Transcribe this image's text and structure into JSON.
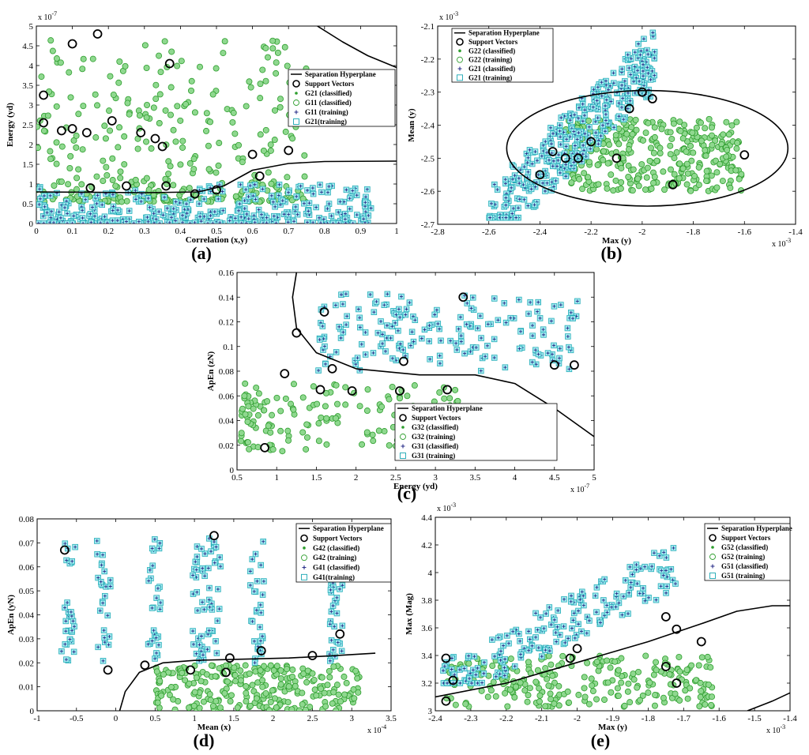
{
  "colors": {
    "classA_fill": "#8fd88f",
    "classA_edge": "#2e9e2e",
    "classB_fill": "#9fe9ef",
    "classB_edge": "#1aa7b3",
    "star": "#2a2f8a",
    "hyperplane": "#000000"
  },
  "legend_common": {
    "hyperplane": "Separation Hyperplane",
    "support": "Support Vectors"
  },
  "chart_data": [
    {
      "id": "a",
      "panel_label": "(a)",
      "type": "scatter",
      "xlabel": "Correlation (x,y)",
      "ylabel": "Energy (yd)",
      "xlim": [
        0,
        1
      ],
      "ylim": [
        0,
        5
      ],
      "xticks": [
        "0",
        "0.1",
        "0.2",
        "0.3",
        "0.4",
        "0.5",
        "0.6",
        "0.7",
        "0.8",
        "0.9",
        "1"
      ],
      "yticks": [
        "0",
        "0.5",
        "1",
        "1.5",
        "2",
        "2.5",
        "3",
        "3.5",
        "4",
        "4.5",
        "5"
      ],
      "x_exponent": "",
      "y_exponent": "x 10",
      "y_exponent_power": "-7",
      "legend": [
        "G21 (classified)",
        "G11 (classified)",
        "G11 (training)",
        "G21(training)"
      ],
      "hyperplane": [
        [
          [
            0.78,
            5.0
          ],
          [
            0.85,
            4.6
          ],
          [
            0.92,
            4.25
          ],
          [
            1.0,
            3.95
          ]
        ],
        [
          [
            0.0,
            0.8
          ],
          [
            0.3,
            0.78
          ],
          [
            0.45,
            0.8
          ],
          [
            0.52,
            0.95
          ],
          [
            0.6,
            1.35
          ],
          [
            0.7,
            1.52
          ],
          [
            0.8,
            1.57
          ],
          [
            1.0,
            1.58
          ]
        ]
      ],
      "series": [
        {
          "name": "G21 (training)",
          "class": "A",
          "n": 330,
          "x": [
            0.0,
            0.75
          ],
          "y": [
            0.55,
            4.7
          ],
          "skew": "lowdense"
        },
        {
          "name": "G11 (training)",
          "class": "B",
          "n": 340,
          "x": [
            0.0,
            0.93
          ],
          "y": [
            0.0,
            1.0
          ],
          "skew": "lowdense"
        }
      ],
      "support_vectors": [
        [
          0.02,
          3.25
        ],
        [
          0.1,
          4.55
        ],
        [
          0.17,
          4.8
        ],
        [
          0.37,
          4.05
        ],
        [
          0.02,
          2.55
        ],
        [
          0.07,
          2.35
        ],
        [
          0.1,
          2.4
        ],
        [
          0.14,
          2.3
        ],
        [
          0.21,
          2.6
        ],
        [
          0.29,
          2.3
        ],
        [
          0.33,
          2.15
        ],
        [
          0.35,
          1.95
        ],
        [
          0.6,
          1.75
        ],
        [
          0.7,
          1.85
        ],
        [
          0.36,
          0.95
        ],
        [
          0.44,
          0.75
        ],
        [
          0.5,
          0.85
        ],
        [
          0.62,
          1.2
        ],
        [
          0.25,
          0.95
        ],
        [
          0.15,
          0.9
        ]
      ]
    },
    {
      "id": "b",
      "panel_label": "(b)",
      "type": "scatter",
      "xlabel": "Max (y)",
      "ylabel": "Mean (y)",
      "xlim": [
        -2.8,
        -1.4
      ],
      "ylim": [
        -2.7,
        -2.1
      ],
      "xticks": [
        "-2.8",
        "-2.6",
        "-2.4",
        "-2.2",
        "-2",
        "-1.8",
        "-1.6",
        "-1.4"
      ],
      "yticks": [
        "-2.7",
        "-2.6",
        "-2.5",
        "-2.4",
        "-2.3",
        "-2.2",
        "-2.1"
      ],
      "x_exponent": "x 10",
      "x_exponent_power": "-3",
      "y_exponent": "x 10",
      "y_exponent_power": "-3",
      "legend": [
        "G22 (classified)",
        "G22 (training)",
        "G21 (classified)",
        "G21 (training)"
      ],
      "ellipse": {
        "cx": -1.98,
        "cy": -2.47,
        "rx": 0.55,
        "ry": 0.175
      },
      "series": [
        {
          "name": "G22 (training)",
          "class": "A",
          "n": 330,
          "x": [
            -2.3,
            -1.6
          ],
          "y": [
            -2.6,
            -2.38
          ],
          "skew": "none"
        },
        {
          "name": "G21 (training)",
          "class": "B",
          "n": 340,
          "x": [
            -2.6,
            -1.95
          ],
          "y": [
            -2.68,
            -2.12
          ],
          "skew": "diag"
        }
      ],
      "support_vectors": [
        [
          -2.0,
          -2.3
        ],
        [
          -1.96,
          -2.32
        ],
        [
          -2.05,
          -2.35
        ],
        [
          -2.2,
          -2.45
        ],
        [
          -2.3,
          -2.5
        ],
        [
          -2.4,
          -2.55
        ],
        [
          -2.1,
          -2.5
        ],
        [
          -1.6,
          -2.49
        ],
        [
          -1.88,
          -2.58
        ],
        [
          -2.25,
          -2.5
        ],
        [
          -2.35,
          -2.48
        ]
      ]
    },
    {
      "id": "c",
      "panel_label": "(c)",
      "type": "scatter",
      "xlabel": "Energy (yd)",
      "ylabel": "ApEn (zN)",
      "xlim": [
        0.5,
        5
      ],
      "ylim": [
        0,
        0.16
      ],
      "xticks": [
        "0.5",
        "1",
        "1.5",
        "2",
        "2.5",
        "3",
        "3.5",
        "4",
        "4.5",
        "5"
      ],
      "yticks": [
        "0",
        "0.02",
        "0.04",
        "0.06",
        "0.08",
        "0.1",
        "0.12",
        "0.14",
        "0.16"
      ],
      "x_exponent": "x 10",
      "x_exponent_power": "-7",
      "y_exponent": "",
      "legend": [
        "G32 (classified)",
        "G32 (training)",
        "G31 (classified)",
        "G31 (training)"
      ],
      "hyperplane": [
        [
          [
            1.25,
            0.16
          ],
          [
            1.2,
            0.14
          ],
          [
            1.25,
            0.115
          ],
          [
            1.5,
            0.095
          ],
          [
            2.0,
            0.082
          ],
          [
            2.8,
            0.077
          ],
          [
            3.5,
            0.077
          ],
          [
            4.0,
            0.07
          ],
          [
            4.5,
            0.05
          ],
          [
            5.0,
            0.027
          ]
        ]
      ],
      "series": [
        {
          "name": "G32 (training)",
          "class": "A",
          "n": 150,
          "x": [
            0.55,
            3.3
          ],
          "y": [
            0.015,
            0.07
          ],
          "skew": "leftdense"
        },
        {
          "name": "G31 (training)",
          "class": "B",
          "n": 170,
          "x": [
            1.5,
            4.8
          ],
          "y": [
            0.08,
            0.143
          ],
          "skew": "none"
        }
      ],
      "support_vectors": [
        [
          1.25,
          0.111
        ],
        [
          1.6,
          0.128
        ],
        [
          3.35,
          0.14
        ],
        [
          1.7,
          0.082
        ],
        [
          2.6,
          0.088
        ],
        [
          4.5,
          0.085
        ],
        [
          4.75,
          0.085
        ],
        [
          0.85,
          0.018
        ],
        [
          1.55,
          0.065
        ],
        [
          3.15,
          0.065
        ],
        [
          2.55,
          0.064
        ],
        [
          1.95,
          0.064
        ],
        [
          1.1,
          0.078
        ]
      ]
    },
    {
      "id": "d",
      "panel_label": "(d)",
      "type": "scatter",
      "xlabel": "Mean (x)",
      "ylabel": "ApEn (yN)",
      "xlim": [
        -1,
        3.5
      ],
      "ylim": [
        0,
        0.08
      ],
      "xticks": [
        "-1",
        "-0.5",
        "0",
        "0.5",
        "1",
        "1.5",
        "2",
        "2.5",
        "3",
        "3.5"
      ],
      "yticks": [
        "0",
        "0.01",
        "0.02",
        "0.03",
        "0.04",
        "0.05",
        "0.06",
        "0.07",
        "0.08"
      ],
      "x_exponent": "x 10",
      "x_exponent_power": "-4",
      "y_exponent": "",
      "legend": [
        "G42 (classified)",
        "G42 (training)",
        "G41 (classified)",
        "G41(training)"
      ],
      "hyperplane": [
        [
          [
            0.05,
            0.0
          ],
          [
            0.12,
            0.008
          ],
          [
            0.3,
            0.016
          ],
          [
            0.6,
            0.02
          ],
          [
            1.0,
            0.021
          ],
          [
            1.6,
            0.0215
          ],
          [
            2.2,
            0.022
          ],
          [
            2.8,
            0.023
          ],
          [
            3.3,
            0.024
          ]
        ]
      ],
      "series": [
        {
          "name": "G42 (training)",
          "class": "A",
          "n": 260,
          "x": [
            0.5,
            3.1
          ],
          "y": [
            0.0,
            0.019
          ],
          "skew": "none"
        },
        {
          "name": "G41 (training)",
          "class": "B",
          "n": 200,
          "x": [
            -0.6,
            3.0
          ],
          "y": [
            0.02,
            0.072
          ],
          "skew": "clusters"
        }
      ],
      "clusters_x": [
        -0.6,
        -0.15,
        0.5,
        1.05,
        1.25,
        1.8,
        2.8
      ],
      "support_vectors": [
        [
          -0.65,
          0.067
        ],
        [
          1.25,
          0.073
        ],
        [
          -0.1,
          0.017
        ],
        [
          0.37,
          0.019
        ],
        [
          1.45,
          0.022
        ],
        [
          1.85,
          0.025
        ],
        [
          2.5,
          0.023
        ],
        [
          2.85,
          0.032
        ],
        [
          0.95,
          0.017
        ],
        [
          1.4,
          0.016
        ]
      ]
    },
    {
      "id": "e",
      "panel_label": "(e)",
      "type": "scatter",
      "xlabel": "Max (y)",
      "ylabel": "Max (Mag)",
      "xlim": [
        -2.4,
        -1.4
      ],
      "ylim": [
        3.0,
        4.4
      ],
      "xticks": [
        "-2.4",
        "-2.3",
        "-2.2",
        "-2.1",
        "-2",
        "-1.9",
        "-1.8",
        "-1.7",
        "-1.6",
        "-1.5",
        "-1.4"
      ],
      "yticks": [
        "3",
        "3.2",
        "3.4",
        "3.6",
        "3.8",
        "4",
        "4.2",
        "4.4"
      ],
      "x_exponent": "x 10",
      "x_exponent_power": "-3",
      "y_exponent": "x 10",
      "y_exponent_power": "-3",
      "legend": [
        "G52 (classified)",
        "G52 (training)",
        "G51 (classified)",
        "G51 (training)"
      ],
      "hyperplane": [
        [
          [
            -2.4,
            3.1
          ],
          [
            -2.2,
            3.2
          ],
          [
            -2.0,
            3.35
          ],
          [
            -1.8,
            3.5
          ],
          [
            -1.65,
            3.63
          ],
          [
            -1.55,
            3.72
          ],
          [
            -1.45,
            3.76
          ],
          [
            -1.4,
            3.76
          ]
        ],
        [
          [
            -1.52,
            3.0
          ],
          [
            -1.45,
            3.07
          ],
          [
            -1.4,
            3.13
          ]
        ]
      ],
      "series": [
        {
          "name": "G52 (training)",
          "class": "A",
          "n": 250,
          "x": [
            -2.37,
            -1.62
          ],
          "y": [
            3.03,
            3.4
          ],
          "skew": "none"
        },
        {
          "name": "G51 (training)",
          "class": "B",
          "n": 180,
          "x": [
            -2.38,
            -1.72
          ],
          "y": [
            3.2,
            4.2
          ],
          "skew": "diag"
        }
      ],
      "support_vectors": [
        [
          -2.37,
          3.38
        ],
        [
          -2.35,
          3.22
        ],
        [
          -1.72,
          3.59
        ],
        [
          -1.75,
          3.68
        ],
        [
          -2.0,
          3.45
        ],
        [
          -1.65,
          3.5
        ],
        [
          -2.02,
          3.38
        ],
        [
          -1.75,
          3.32
        ],
        [
          -1.72,
          3.2
        ],
        [
          -2.37,
          3.07
        ]
      ]
    }
  ]
}
